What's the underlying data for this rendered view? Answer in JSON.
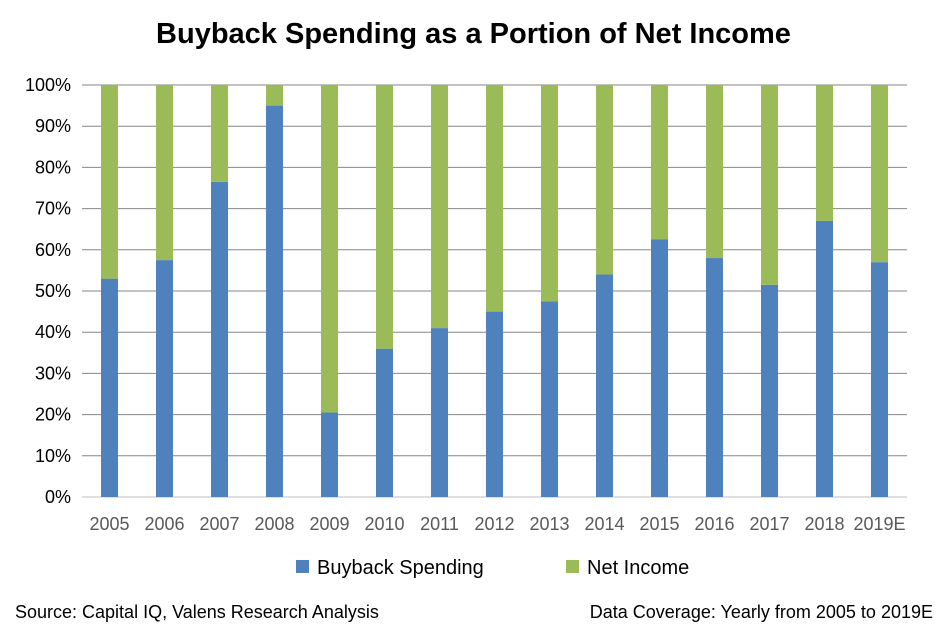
{
  "chart_data": {
    "type": "bar",
    "stacked": true,
    "title": "Buyback Spending as a Portion of Net Income",
    "categories": [
      "2005",
      "2006",
      "2007",
      "2008",
      "2009",
      "2010",
      "2011",
      "2012",
      "2013",
      "2014",
      "2015",
      "2016",
      "2017",
      "2018",
      "2019E"
    ],
    "series": [
      {
        "name": "Buyback Spending",
        "color": "#4f81bd",
        "values": [
          53,
          57.5,
          76.5,
          95,
          20.5,
          36,
          41,
          45,
          47.5,
          54,
          62.5,
          58,
          51.5,
          67,
          57
        ]
      },
      {
        "name": "Net Income",
        "color": "#9bbb59",
        "values": [
          47,
          42.5,
          23.5,
          5,
          79.5,
          64,
          59,
          55,
          52.5,
          46,
          37.5,
          42,
          48.5,
          33,
          43
        ]
      }
    ],
    "yticks": [
      "0%",
      "10%",
      "20%",
      "30%",
      "40%",
      "50%",
      "60%",
      "70%",
      "80%",
      "90%",
      "100%"
    ],
    "ylim": [
      0,
      100
    ],
    "grid": true,
    "legend": "bottom"
  },
  "footer": {
    "source": "Source: Capital IQ, Valens Research Analysis",
    "coverage": "Data Coverage: Yearly from 2005 to 2019E"
  }
}
